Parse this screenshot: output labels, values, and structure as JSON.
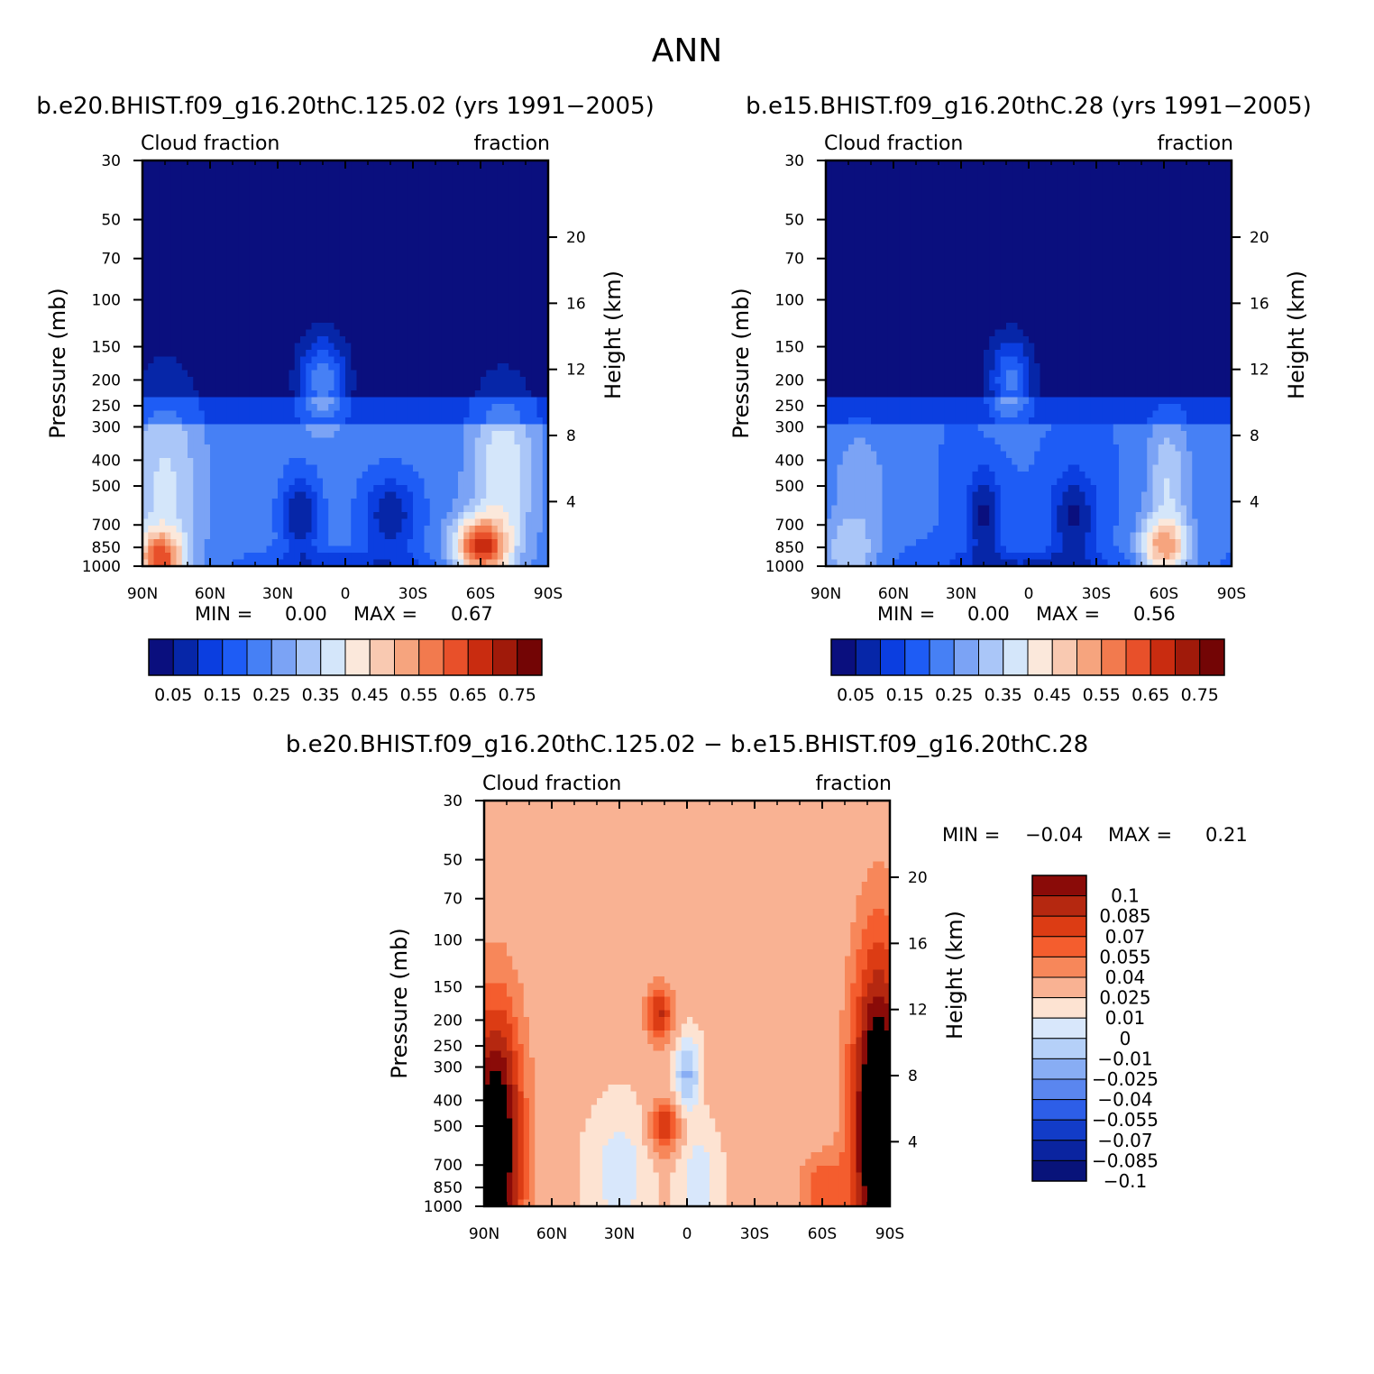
{
  "page": {
    "title": "ANN"
  },
  "chart_data": [
    {
      "type": "heatmap",
      "subtype": "zonal-mean pressure-latitude filled contour",
      "title": "b.e20.BHIST.f09_g16.20thC.125.02 (yrs 1991−2005)",
      "left_label": "Cloud fraction",
      "right_label": "fraction",
      "xlabel": "",
      "ylabel": "Pressure (mb)",
      "ylabel_right": "Height (km)",
      "x_tick_labels": [
        "90N",
        "60N",
        "30N",
        "0",
        "30S",
        "60S",
        "90S"
      ],
      "x_tick_values": [
        90,
        60,
        30,
        0,
        -30,
        -60,
        -90
      ],
      "xlim": [
        90,
        -90
      ],
      "y_tick_values": [
        30,
        50,
        70,
        100,
        150,
        200,
        250,
        300,
        400,
        500,
        700,
        850,
        1000
      ],
      "ylim": [
        1000,
        30
      ],
      "height_ticks_km": [
        20,
        16,
        12,
        8,
        4
      ],
      "min_label": "MIN =",
      "min_value": "0.00",
      "max_label": "MAX =",
      "max_value": "0.67",
      "colorbar_labels": [
        "0.05",
        "0.15",
        "0.25",
        "0.35",
        "0.45",
        "0.55",
        "0.65",
        "0.75"
      ],
      "colorbar_colors": [
        "#0a0f7e",
        "#0626a8",
        "#0b3ee0",
        "#1e5cf5",
        "#4680f5",
        "#7ba3f5",
        "#aac6f8",
        "#d4e6fa",
        "#fbe8db",
        "#f9c9b1",
        "#f6a47e",
        "#f27a4e",
        "#e8502a",
        "#c92c10",
        "#a01a0a",
        "#730505"
      ]
    },
    {
      "type": "heatmap",
      "subtype": "zonal-mean pressure-latitude filled contour",
      "title": "b.e15.BHIST.f09_g16.20thC.28 (yrs 1991−2005)",
      "left_label": "Cloud fraction",
      "right_label": "fraction",
      "xlabel": "",
      "ylabel": "Pressure (mb)",
      "ylabel_right": "Height (km)",
      "x_tick_labels": [
        "90N",
        "60N",
        "30N",
        "0",
        "30S",
        "60S",
        "90S"
      ],
      "x_tick_values": [
        90,
        60,
        30,
        0,
        -30,
        -60,
        -90
      ],
      "xlim": [
        90,
        -90
      ],
      "y_tick_values": [
        30,
        50,
        70,
        100,
        150,
        200,
        250,
        300,
        400,
        500,
        700,
        850,
        1000
      ],
      "ylim": [
        1000,
        30
      ],
      "height_ticks_km": [
        20,
        16,
        12,
        8,
        4
      ],
      "min_label": "MIN =",
      "min_value": "0.00",
      "max_label": "MAX =",
      "max_value": "0.56",
      "colorbar_labels": [
        "0.05",
        "0.15",
        "0.25",
        "0.35",
        "0.45",
        "0.55",
        "0.65",
        "0.75"
      ],
      "colorbar_colors": [
        "#0a0f7e",
        "#0626a8",
        "#0b3ee0",
        "#1e5cf5",
        "#4680f5",
        "#7ba3f5",
        "#aac6f8",
        "#d4e6fa",
        "#fbe8db",
        "#f9c9b1",
        "#f6a47e",
        "#f27a4e",
        "#e8502a",
        "#c92c10",
        "#a01a0a",
        "#730505"
      ]
    },
    {
      "type": "heatmap",
      "subtype": "difference zonal-mean pressure-latitude filled contour",
      "title": "b.e20.BHIST.f09_g16.20thC.125.02 − b.e15.BHIST.f09_g16.20thC.28",
      "left_label": "Cloud fraction",
      "right_label": "fraction",
      "xlabel": "",
      "ylabel": "Pressure (mb)",
      "ylabel_right": "Height (km)",
      "x_tick_labels": [
        "90N",
        "60N",
        "30N",
        "0",
        "30S",
        "60S",
        "90S"
      ],
      "x_tick_values": [
        90,
        60,
        30,
        0,
        -30,
        -60,
        -90
      ],
      "xlim": [
        90,
        -90
      ],
      "y_tick_values": [
        30,
        50,
        70,
        100,
        150,
        200,
        250,
        300,
        400,
        500,
        700,
        850,
        1000
      ],
      "ylim": [
        1000,
        30
      ],
      "height_ticks_km": [
        20,
        16,
        12,
        8,
        4
      ],
      "min_label": "MIN =",
      "min_value": "−0.04",
      "max_label": "MAX =",
      "max_value": "0.21",
      "colorbar_labels": [
        "0.1",
        "0.085",
        "0.07",
        "0.055",
        "0.04",
        "0.025",
        "0.01",
        "0",
        "−0.01",
        "−0.025",
        "−0.04",
        "−0.055",
        "−0.07",
        "−0.085",
        "−0.1"
      ],
      "colorbar_colors": [
        "#8a0b08",
        "#b52810",
        "#dc3c14",
        "#f45d2e",
        "#f7875a",
        "#f9b293",
        "#fde3d2",
        "#d8e7fb",
        "#b5d0f8",
        "#88adf4",
        "#5a86ef",
        "#2d5ee8",
        "#123cc8",
        "#0a24a0",
        "#08137a"
      ]
    }
  ]
}
